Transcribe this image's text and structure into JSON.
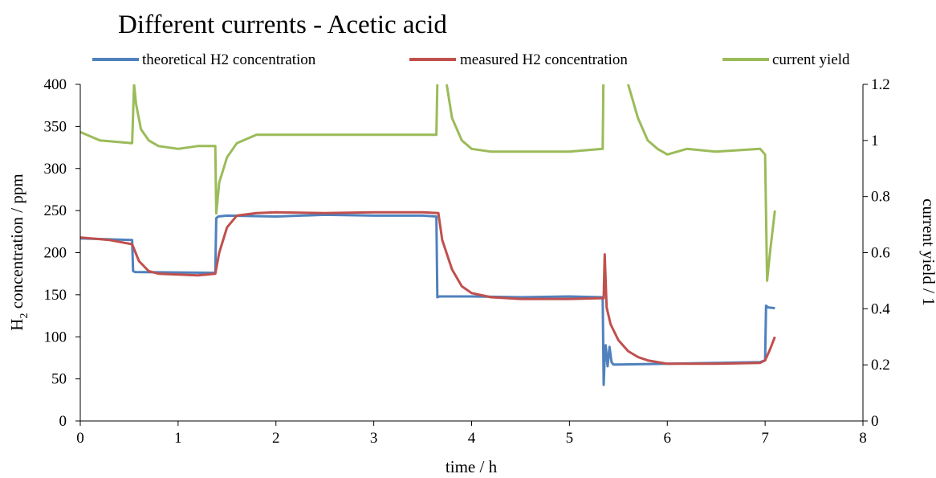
{
  "chart_data": {
    "type": "line",
    "title": "Different currents - Acetic acid",
    "xlabel": "time / h",
    "ylabel_main": "H",
    "ylabel_sub": "2",
    "ylabel_rest": " concentration / ppm",
    "y2label": "current yield / 1",
    "xlim": [
      0,
      8
    ],
    "ylim": [
      0,
      400
    ],
    "y2lim": [
      0,
      1.2
    ],
    "x_ticks": [
      "0",
      "1",
      "2",
      "3",
      "4",
      "5",
      "6",
      "7",
      "8"
    ],
    "y_ticks": [
      "0",
      "50",
      "100",
      "150",
      "200",
      "250",
      "300",
      "350",
      "400"
    ],
    "y2_ticks": [
      "0",
      "0.2",
      "0.4",
      "0.6",
      "0.8",
      "1",
      "1.2"
    ],
    "legend_position": "top",
    "grid": false,
    "series": [
      {
        "name": "theoretical H2 concentration",
        "axis": "left",
        "color": "#4f81bd",
        "x": [
          0,
          0.53,
          0.54,
          0.56,
          1.38,
          1.39,
          1.41,
          1.5,
          2.0,
          2.5,
          3.0,
          3.5,
          3.64,
          3.65,
          3.67,
          4.0,
          4.5,
          5.0,
          5.34,
          5.35,
          5.36,
          5.37,
          5.39,
          5.41,
          5.43,
          5.45,
          5.5,
          6.0,
          6.5,
          6.95,
          7.0,
          7.01,
          7.03,
          7.1
        ],
        "y": [
          217,
          215,
          178,
          177,
          176,
          241,
          243,
          244,
          243,
          245,
          244,
          244,
          243,
          147,
          148,
          148,
          147,
          148,
          147,
          43,
          75,
          90,
          65,
          88,
          70,
          67,
          67,
          68,
          69,
          70,
          72,
          137,
          135,
          134
        ]
      },
      {
        "name": "measured H2 concentration",
        "axis": "left",
        "color": "#c0504d",
        "x": [
          0,
          0.3,
          0.53,
          0.6,
          0.7,
          0.8,
          1.0,
          1.2,
          1.38,
          1.42,
          1.5,
          1.6,
          1.8,
          2.0,
          2.5,
          3.0,
          3.5,
          3.66,
          3.7,
          3.8,
          3.9,
          4.0,
          4.2,
          4.5,
          5.0,
          5.35,
          5.36,
          5.38,
          5.42,
          5.5,
          5.6,
          5.7,
          5.8,
          6.0,
          6.5,
          6.95,
          7.0,
          7.05,
          7.1
        ],
        "y": [
          218,
          215,
          210,
          190,
          178,
          175,
          174,
          173,
          175,
          200,
          230,
          244,
          247,
          248,
          247,
          248,
          248,
          247,
          215,
          180,
          160,
          152,
          147,
          145,
          145,
          146,
          198,
          135,
          115,
          96,
          83,
          76,
          72,
          68,
          68,
          69,
          72,
          85,
          100
        ]
      },
      {
        "name": "current yield",
        "axis": "right",
        "color": "#9bbb59",
        "x": [
          0,
          0.2,
          0.53,
          0.55,
          0.57,
          0.62,
          0.7,
          0.8,
          1.0,
          1.2,
          1.38,
          1.39,
          1.42,
          1.5,
          1.6,
          1.8,
          2.0,
          2.5,
          3.0,
          3.5,
          3.64,
          3.65,
          3.66,
          3.67,
          3.7,
          3.8,
          3.9,
          4.0,
          4.2,
          4.5,
          5.0,
          5.34,
          5.35,
          5.36,
          5.37,
          5.38,
          5.55,
          5.6,
          5.7,
          5.8,
          5.9,
          6.0,
          6.2,
          6.5,
          6.95,
          7.0,
          7.02,
          7.05,
          7.1
        ],
        "y": [
          1.03,
          1.0,
          0.99,
          1.2,
          1.13,
          1.04,
          1.0,
          0.98,
          0.97,
          0.98,
          0.98,
          0.74,
          0.85,
          0.94,
          0.99,
          1.02,
          1.02,
          1.02,
          1.02,
          1.02,
          1.02,
          1.2,
          1.3,
          1.3,
          1.3,
          1.08,
          1.0,
          0.97,
          0.96,
          0.96,
          0.96,
          0.97,
          1.3,
          1.3,
          1.3,
          1.3,
          1.3,
          1.2,
          1.08,
          1.0,
          0.97,
          0.95,
          0.97,
          0.96,
          0.97,
          0.95,
          0.5,
          0.6,
          0.75
        ]
      }
    ]
  }
}
